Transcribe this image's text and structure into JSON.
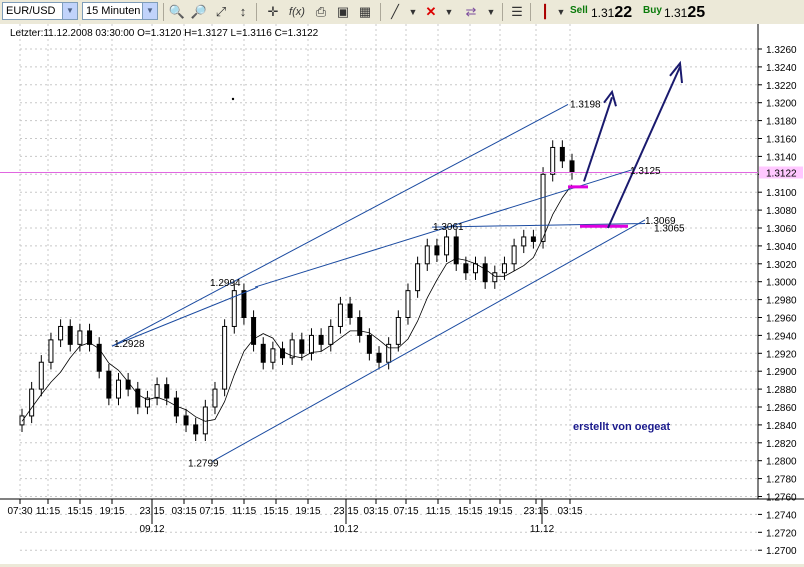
{
  "toolbar": {
    "symbol": "EUR/USD",
    "timeframe": "15 Minuten",
    "sell_label": "Sell",
    "sell_price_prefix": "1.31",
    "sell_price_big": "22",
    "buy_label": "Buy",
    "buy_price_prefix": "1.31",
    "buy_price_big": "25"
  },
  "chart": {
    "header": "Letzter:11.12.2008 03:30:00 O=1.3120 H=1.3127 L=1.3116 C=1.3122",
    "current_price": "1.3122",
    "watermark": "erstellt von oegeat",
    "y_ticks": [
      "1.3260",
      "1.3240",
      "1.3220",
      "1.3200",
      "1.3180",
      "1.3160",
      "1.3140",
      "1.3120",
      "1.3100",
      "1.3080",
      "1.3060",
      "1.3040",
      "1.3020",
      "1.3000",
      "1.2980",
      "1.2960",
      "1.2940",
      "1.2920",
      "1.2900",
      "1.2880",
      "1.2860",
      "1.2840",
      "1.2820",
      "1.2800",
      "1.2780",
      "1.2760",
      "1.2740",
      "1.2720",
      "1.2700"
    ],
    "x_ticks": [
      "07:30",
      "11:15",
      "15:15",
      "19:15",
      "23:15",
      "03:15",
      "07:15",
      "11:15",
      "15:15",
      "19:15",
      "23:15",
      "03:15",
      "07:15",
      "11:15",
      "15:15",
      "19:15",
      "23:15",
      "03:15"
    ],
    "date_labels": [
      "09.12",
      "10.12",
      "11.12"
    ],
    "annotations": [
      "1.2928",
      "1.2994",
      "1.2799",
      "1.3061",
      "1.3198",
      "1.3125",
      "1.3069",
      "1.3065"
    ]
  },
  "chart_data": {
    "type": "candlestick",
    "title": "EUR/USD 15 Minuten",
    "ylim": [
      1.27,
      1.326
    ],
    "series": [
      {
        "name": "EUR/USD",
        "close": [
          1.285,
          1.288,
          1.291,
          1.2935,
          1.295,
          1.293,
          1.2945,
          1.293,
          1.29,
          1.287,
          1.289,
          1.288,
          1.286,
          1.287,
          1.2885,
          1.287,
          1.285,
          1.284,
          1.283,
          1.286,
          1.288,
          1.295,
          1.299,
          1.296,
          1.293,
          1.291,
          1.2925,
          1.2915,
          1.2935,
          1.292,
          1.294,
          1.293,
          1.295,
          1.2975,
          1.296,
          1.294,
          1.292,
          1.291,
          1.293,
          1.296,
          1.299,
          1.302,
          1.304,
          1.303,
          1.305,
          1.302,
          1.301,
          1.302,
          1.3,
          1.301,
          1.302,
          1.304,
          1.305,
          1.3045,
          1.312,
          1.315,
          1.3135,
          1.3122
        ]
      }
    ],
    "levels": {
      "support_high": 1.3061,
      "resistance_high": 1.3198,
      "low": 1.2799,
      "pivot": 1.2994,
      "left_pivot": 1.2928,
      "target_upper_right": 1.3125,
      "line_1": 1.3069,
      "line_2": 1.3065
    }
  }
}
